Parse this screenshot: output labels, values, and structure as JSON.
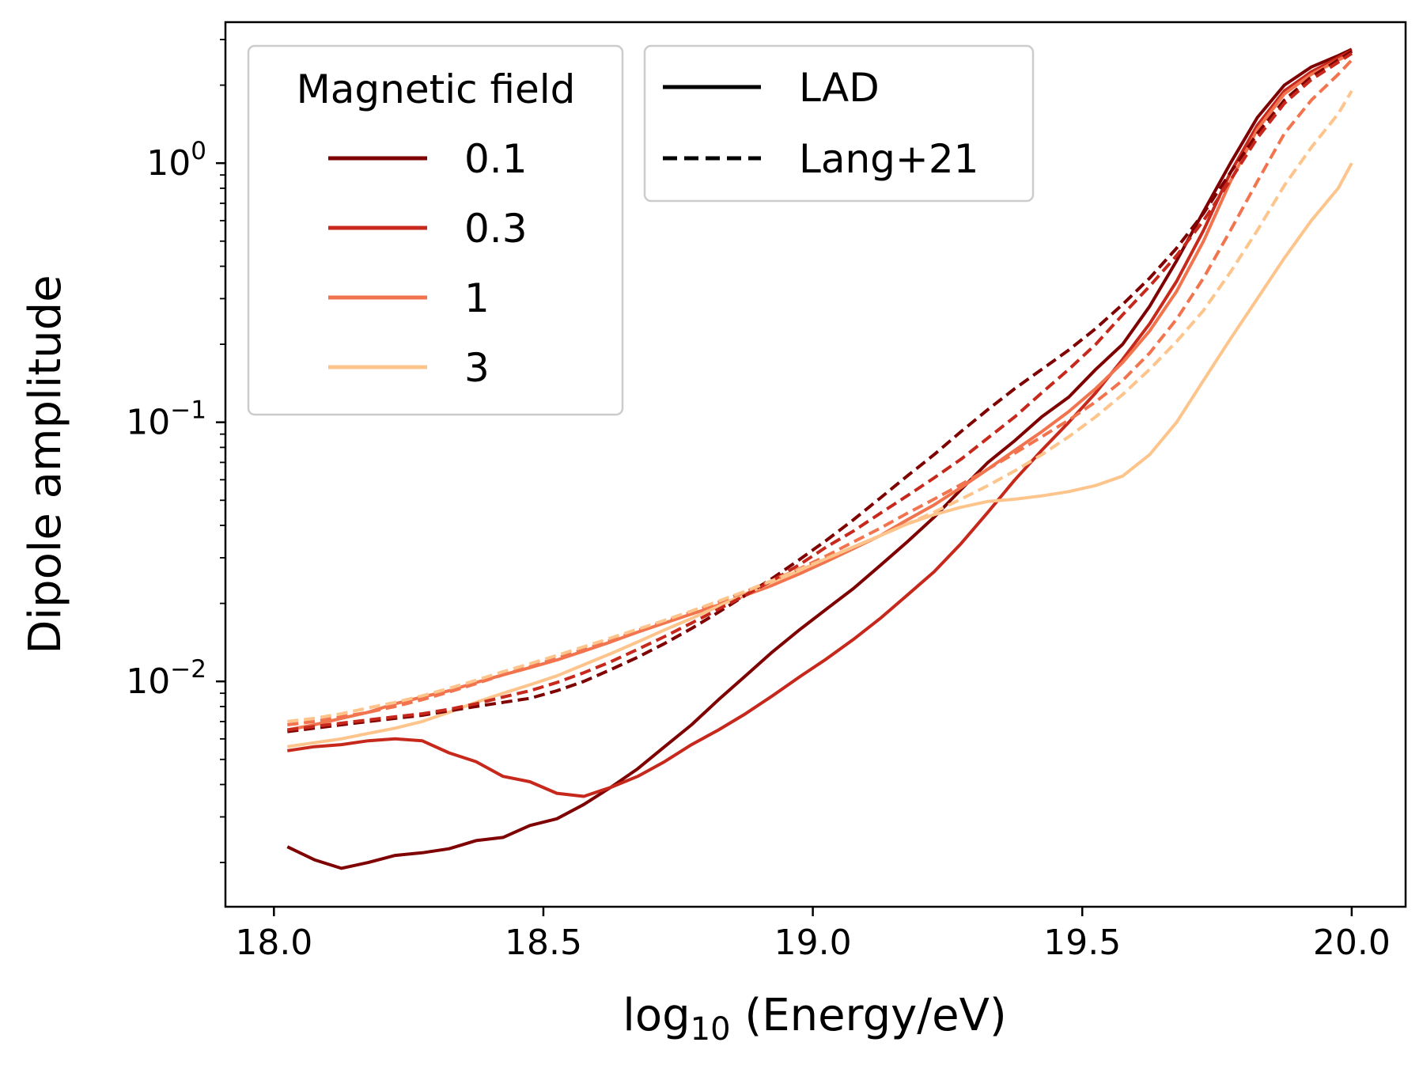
{
  "chart_data": {
    "type": "line",
    "xlabel": "log10 (Energy/eV)",
    "ylabel": "Dipole amplitude",
    "xlim": [
      17.91,
      20.1
    ],
    "ylim": [
      0.00135,
      3.5
    ],
    "yscale": "log",
    "x_ticks": [
      "18.0",
      "18.5",
      "19.0",
      "19.5",
      "20.0"
    ],
    "y_ticks": [
      {
        "value": 1,
        "base": "10",
        "exp": "0"
      },
      {
        "value": 0.1,
        "base": "10",
        "exp": "−1"
      },
      {
        "value": 0.01,
        "base": "10",
        "exp": "−2"
      }
    ],
    "legend_field": {
      "title": "Magnetic field",
      "placement": "top-left",
      "entries": [
        {
          "label": "0.1",
          "color": "#7f0000"
        },
        {
          "label": "0.3",
          "color": "#c7281c"
        },
        {
          "label": "1",
          "color": "#f2744e"
        },
        {
          "label": "3",
          "color": "#fdc48c"
        }
      ]
    },
    "legend_style": {
      "placement": "top-center",
      "entries": [
        {
          "label": "LAD",
          "dash": "solid"
        },
        {
          "label": "Lang+21",
          "dash": "dashed"
        }
      ]
    },
    "x": [
      18.025,
      18.075,
      18.125,
      18.175,
      18.225,
      18.275,
      18.325,
      18.375,
      18.425,
      18.475,
      18.525,
      18.575,
      18.625,
      18.675,
      18.725,
      18.775,
      18.825,
      18.875,
      18.925,
      18.975,
      19.025,
      19.075,
      19.125,
      19.175,
      19.225,
      19.275,
      19.325,
      19.375,
      19.425,
      19.475,
      19.525,
      19.575,
      19.625,
      19.675,
      19.725,
      19.775,
      19.825,
      19.875,
      19.925,
      19.975,
      20.0
    ],
    "series": [
      {
        "field": "0.1",
        "method": "LAD",
        "color": "#7f0000",
        "dash": "solid",
        "values": [
          0.0023,
          0.00205,
          0.0019,
          0.002,
          0.00213,
          0.00218,
          0.00226,
          0.00243,
          0.0025,
          0.00278,
          0.00295,
          0.00335,
          0.0039,
          0.0046,
          0.0056,
          0.0068,
          0.0085,
          0.0105,
          0.013,
          0.0158,
          0.019,
          0.0228,
          0.028,
          0.0345,
          0.043,
          0.055,
          0.07,
          0.085,
          0.105,
          0.125,
          0.16,
          0.2,
          0.28,
          0.42,
          0.65,
          1.0,
          1.5,
          2.0,
          2.35,
          2.6,
          2.75
        ]
      },
      {
        "field": "0.3",
        "method": "LAD",
        "color": "#c7281c",
        "dash": "solid",
        "values": [
          0.0054,
          0.0056,
          0.0057,
          0.0059,
          0.006,
          0.0059,
          0.0053,
          0.0049,
          0.0043,
          0.0041,
          0.0037,
          0.0036,
          0.0039,
          0.0043,
          0.0049,
          0.0057,
          0.0065,
          0.0075,
          0.0088,
          0.0104,
          0.0122,
          0.0145,
          0.0175,
          0.0215,
          0.0265,
          0.034,
          0.045,
          0.06,
          0.078,
          0.1,
          0.13,
          0.175,
          0.24,
          0.35,
          0.55,
          0.92,
          1.4,
          1.9,
          2.25,
          2.55,
          2.72
        ]
      },
      {
        "field": "1",
        "method": "LAD",
        "color": "#f2744e",
        "dash": "solid",
        "values": [
          0.0065,
          0.0068,
          0.0072,
          0.0076,
          0.0082,
          0.0087,
          0.0092,
          0.0099,
          0.0106,
          0.0113,
          0.0121,
          0.0131,
          0.0142,
          0.0155,
          0.0168,
          0.0182,
          0.0197,
          0.0215,
          0.0235,
          0.026,
          0.029,
          0.0325,
          0.0365,
          0.042,
          0.048,
          0.056,
          0.066,
          0.078,
          0.092,
          0.11,
          0.135,
          0.17,
          0.225,
          0.32,
          0.5,
          0.85,
          1.35,
          1.85,
          2.2,
          2.5,
          2.65
        ]
      },
      {
        "field": "3",
        "method": "LAD",
        "color": "#fdc48c",
        "dash": "solid",
        "values": [
          0.0056,
          0.0058,
          0.006,
          0.0063,
          0.0066,
          0.007,
          0.0076,
          0.0083,
          0.009,
          0.0097,
          0.0105,
          0.0116,
          0.0128,
          0.0142,
          0.0158,
          0.0175,
          0.0195,
          0.0218,
          0.0242,
          0.0268,
          0.0298,
          0.033,
          0.0365,
          0.0405,
          0.044,
          0.047,
          0.0495,
          0.0505,
          0.052,
          0.054,
          0.057,
          0.062,
          0.075,
          0.1,
          0.145,
          0.21,
          0.3,
          0.43,
          0.6,
          0.8,
          1.0
        ]
      },
      {
        "field": "0.1",
        "method": "Lang+21",
        "color": "#7f0000",
        "dash": "dashed",
        "values": [
          0.0064,
          0.0066,
          0.0068,
          0.007,
          0.0072,
          0.0074,
          0.0077,
          0.008,
          0.0083,
          0.0086,
          0.0092,
          0.01,
          0.0111,
          0.0124,
          0.014,
          0.016,
          0.0185,
          0.0215,
          0.025,
          0.0295,
          0.035,
          0.042,
          0.051,
          0.062,
          0.075,
          0.092,
          0.112,
          0.135,
          0.16,
          0.19,
          0.23,
          0.285,
          0.36,
          0.47,
          0.64,
          0.92,
          1.3,
          1.75,
          2.15,
          2.5,
          2.7
        ]
      },
      {
        "field": "0.3",
        "method": "Lang+21",
        "color": "#c7281c",
        "dash": "dashed",
        "values": [
          0.0065,
          0.0067,
          0.0069,
          0.0071,
          0.0073,
          0.0075,
          0.0078,
          0.0082,
          0.0087,
          0.0092,
          0.0099,
          0.0108,
          0.0119,
          0.0133,
          0.0149,
          0.0168,
          0.019,
          0.0215,
          0.0245,
          0.0282,
          0.033,
          0.038,
          0.0445,
          0.052,
          0.061,
          0.072,
          0.087,
          0.105,
          0.13,
          0.16,
          0.2,
          0.26,
          0.335,
          0.44,
          0.6,
          0.86,
          1.25,
          1.7,
          2.1,
          2.45,
          2.65
        ]
      },
      {
        "field": "1",
        "method": "Lang+21",
        "color": "#f2744e",
        "dash": "dashed",
        "values": [
          0.0068,
          0.007,
          0.0073,
          0.0076,
          0.008,
          0.0085,
          0.0091,
          0.0098,
          0.0106,
          0.0114,
          0.0123,
          0.0133,
          0.0144,
          0.0157,
          0.017,
          0.0185,
          0.0202,
          0.0222,
          0.0245,
          0.0272,
          0.0305,
          0.0345,
          0.039,
          0.0445,
          0.0505,
          0.0575,
          0.066,
          0.076,
          0.088,
          0.102,
          0.12,
          0.145,
          0.185,
          0.25,
          0.36,
          0.55,
          0.85,
          1.3,
          1.75,
          2.2,
          2.5
        ]
      },
      {
        "field": "3",
        "method": "Lang+21",
        "color": "#fdc48c",
        "dash": "dashed",
        "values": [
          0.007,
          0.0072,
          0.0075,
          0.0079,
          0.0083,
          0.0088,
          0.0094,
          0.0101,
          0.0109,
          0.0117,
          0.0126,
          0.0136,
          0.0147,
          0.0159,
          0.0172,
          0.0187,
          0.0204,
          0.0223,
          0.0245,
          0.027,
          0.0298,
          0.033,
          0.0365,
          0.0405,
          0.045,
          0.0505,
          0.057,
          0.065,
          0.075,
          0.088,
          0.105,
          0.128,
          0.16,
          0.205,
          0.27,
          0.38,
          0.55,
          0.82,
          1.15,
          1.55,
          1.9
        ]
      }
    ]
  }
}
